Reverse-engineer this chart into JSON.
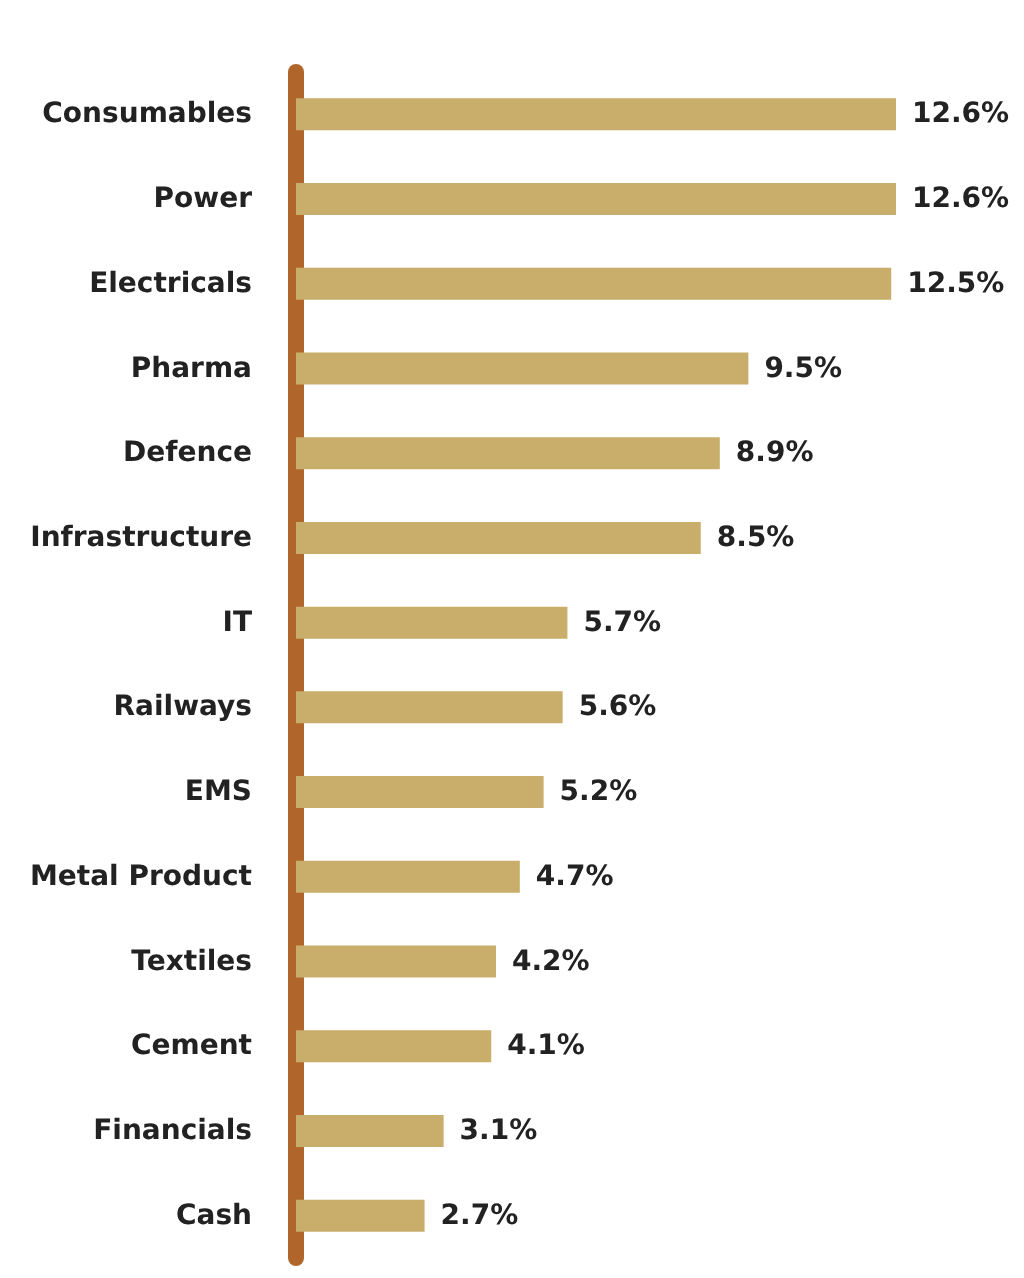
{
  "chart_data": {
    "type": "bar",
    "orientation": "horizontal",
    "categories": [
      "Consumables",
      "Power",
      "Electricals",
      "Pharma",
      "Defence",
      "Infrastructure",
      "IT",
      "Railways",
      "EMS",
      "Metal Product",
      "Textiles",
      "Cement",
      "Financials",
      "Cash"
    ],
    "values": [
      12.6,
      12.6,
      12.5,
      9.5,
      8.9,
      8.5,
      5.7,
      5.6,
      5.2,
      4.7,
      4.2,
      4.1,
      3.1,
      2.7
    ],
    "value_labels": [
      "12.6%",
      "12.6%",
      "12.5%",
      "9.5%",
      "8.9%",
      "8.5%",
      "5.7%",
      "5.6%",
      "5.2%",
      "4.7%",
      "4.2%",
      "4.1%",
      "3.1%",
      "2.7%"
    ],
    "color": "#c9ad6a"
  }
}
